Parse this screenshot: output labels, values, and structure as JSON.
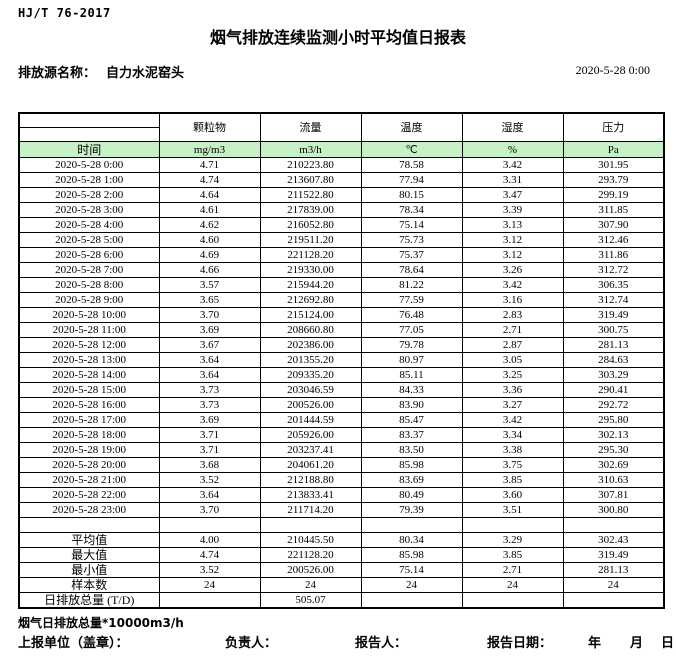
{
  "page": {
    "standard": "HJ/T  76-2017",
    "title": "烟气排放连续监测小时平均值日报表",
    "source_label": "排放源名称：",
    "source_name": "自力水泥窑头",
    "datetime": "2020-5-28 0:00"
  },
  "colors": {
    "header_green": "#C6F0C6"
  },
  "table": {
    "time_header": "时间",
    "columns": [
      {
        "label": "颗粒物",
        "unit": "mg/m3"
      },
      {
        "label": "流量",
        "unit": "m3/h"
      },
      {
        "label": "温度",
        "unit": "℃"
      },
      {
        "label": "湿度",
        "unit": "%"
      },
      {
        "label": "压力",
        "unit": "Pa"
      }
    ],
    "rows": [
      {
        "time": "2020-5-28 0:00",
        "values": [
          "4.71",
          "210223.80",
          "78.58",
          "3.42",
          "301.95"
        ]
      },
      {
        "time": "2020-5-28 1:00",
        "values": [
          "4.74",
          "213607.80",
          "77.94",
          "3.31",
          "293.79"
        ]
      },
      {
        "time": "2020-5-28 2:00",
        "values": [
          "4.64",
          "211522.80",
          "80.15",
          "3.47",
          "299.19"
        ]
      },
      {
        "time": "2020-5-28 3:00",
        "values": [
          "4.61",
          "217839.00",
          "78.34",
          "3.39",
          "311.85"
        ]
      },
      {
        "time": "2020-5-28 4:00",
        "values": [
          "4.62",
          "216052.80",
          "75.14",
          "3.13",
          "307.90"
        ]
      },
      {
        "time": "2020-5-28 5:00",
        "values": [
          "4.60",
          "219511.20",
          "75.73",
          "3.12",
          "312.46"
        ]
      },
      {
        "time": "2020-5-28 6:00",
        "values": [
          "4.69",
          "221128.20",
          "75.37",
          "3.12",
          "311.86"
        ]
      },
      {
        "time": "2020-5-28 7:00",
        "values": [
          "4.66",
          "219330.00",
          "78.64",
          "3.26",
          "312.72"
        ]
      },
      {
        "time": "2020-5-28 8:00",
        "values": [
          "3.57",
          "215944.20",
          "81.22",
          "3.42",
          "306.35"
        ]
      },
      {
        "time": "2020-5-28 9:00",
        "values": [
          "3.65",
          "212692.80",
          "77.59",
          "3.16",
          "312.74"
        ]
      },
      {
        "time": "2020-5-28 10:00",
        "values": [
          "3.70",
          "215124.00",
          "76.48",
          "2.83",
          "319.49"
        ]
      },
      {
        "time": "2020-5-28 11:00",
        "values": [
          "3.69",
          "208660.80",
          "77.05",
          "2.71",
          "300.75"
        ]
      },
      {
        "time": "2020-5-28 12:00",
        "values": [
          "3.67",
          "202386.00",
          "79.78",
          "2.87",
          "281.13"
        ]
      },
      {
        "time": "2020-5-28 13:00",
        "values": [
          "3.64",
          "201355.20",
          "80.97",
          "3.05",
          "284.63"
        ]
      },
      {
        "time": "2020-5-28 14:00",
        "values": [
          "3.64",
          "209335.20",
          "85.11",
          "3.25",
          "303.29"
        ]
      },
      {
        "time": "2020-5-28 15:00",
        "values": [
          "3.73",
          "203046.59",
          "84.33",
          "3.36",
          "290.41"
        ]
      },
      {
        "time": "2020-5-28 16:00",
        "values": [
          "3.73",
          "200526.00",
          "83.90",
          "3.27",
          "292.72"
        ]
      },
      {
        "time": "2020-5-28 17:00",
        "values": [
          "3.69",
          "201444.59",
          "85.47",
          "3.42",
          "295.80"
        ]
      },
      {
        "time": "2020-5-28 18:00",
        "values": [
          "3.71",
          "205926.00",
          "83.37",
          "3.34",
          "302.13"
        ]
      },
      {
        "time": "2020-5-28 19:00",
        "values": [
          "3.71",
          "203237.41",
          "83.50",
          "3.38",
          "295.30"
        ]
      },
      {
        "time": "2020-5-28 20:00",
        "values": [
          "3.68",
          "204061.20",
          "85.98",
          "3.75",
          "302.69"
        ]
      },
      {
        "time": "2020-5-28 21:00",
        "values": [
          "3.52",
          "212188.80",
          "83.69",
          "3.85",
          "310.63"
        ]
      },
      {
        "time": "2020-5-28 22:00",
        "values": [
          "3.64",
          "213833.41",
          "80.49",
          "3.60",
          "307.81"
        ]
      },
      {
        "time": "2020-5-28 23:00",
        "values": [
          "3.70",
          "211714.20",
          "79.39",
          "3.51",
          "300.80"
        ]
      }
    ],
    "summary": [
      {
        "label": "平均值",
        "values": [
          "4.00",
          "210445.50",
          "80.34",
          "3.29",
          "302.43"
        ]
      },
      {
        "label": "最大值",
        "values": [
          "4.74",
          "221128.20",
          "85.98",
          "3.85",
          "319.49"
        ]
      },
      {
        "label": "最小值",
        "values": [
          "3.52",
          "200526.00",
          "75.14",
          "2.71",
          "281.13"
        ]
      },
      {
        "label": "样本数",
        "values": [
          "24",
          "24",
          "24",
          "24",
          "24"
        ]
      },
      {
        "label": "日排放总量 (T/D)",
        "values": [
          "",
          "505.07",
          "",
          "",
          ""
        ]
      }
    ]
  },
  "footer": {
    "note": "烟气日排放总量*10000m3/h",
    "unit_label": "上报单位（盖章）：",
    "manager_label": "负责人：",
    "reporter_label": "报告人：",
    "report_date_label": "报告日期：",
    "year_label": "年",
    "month_label": "月",
    "day_label": "日"
  }
}
